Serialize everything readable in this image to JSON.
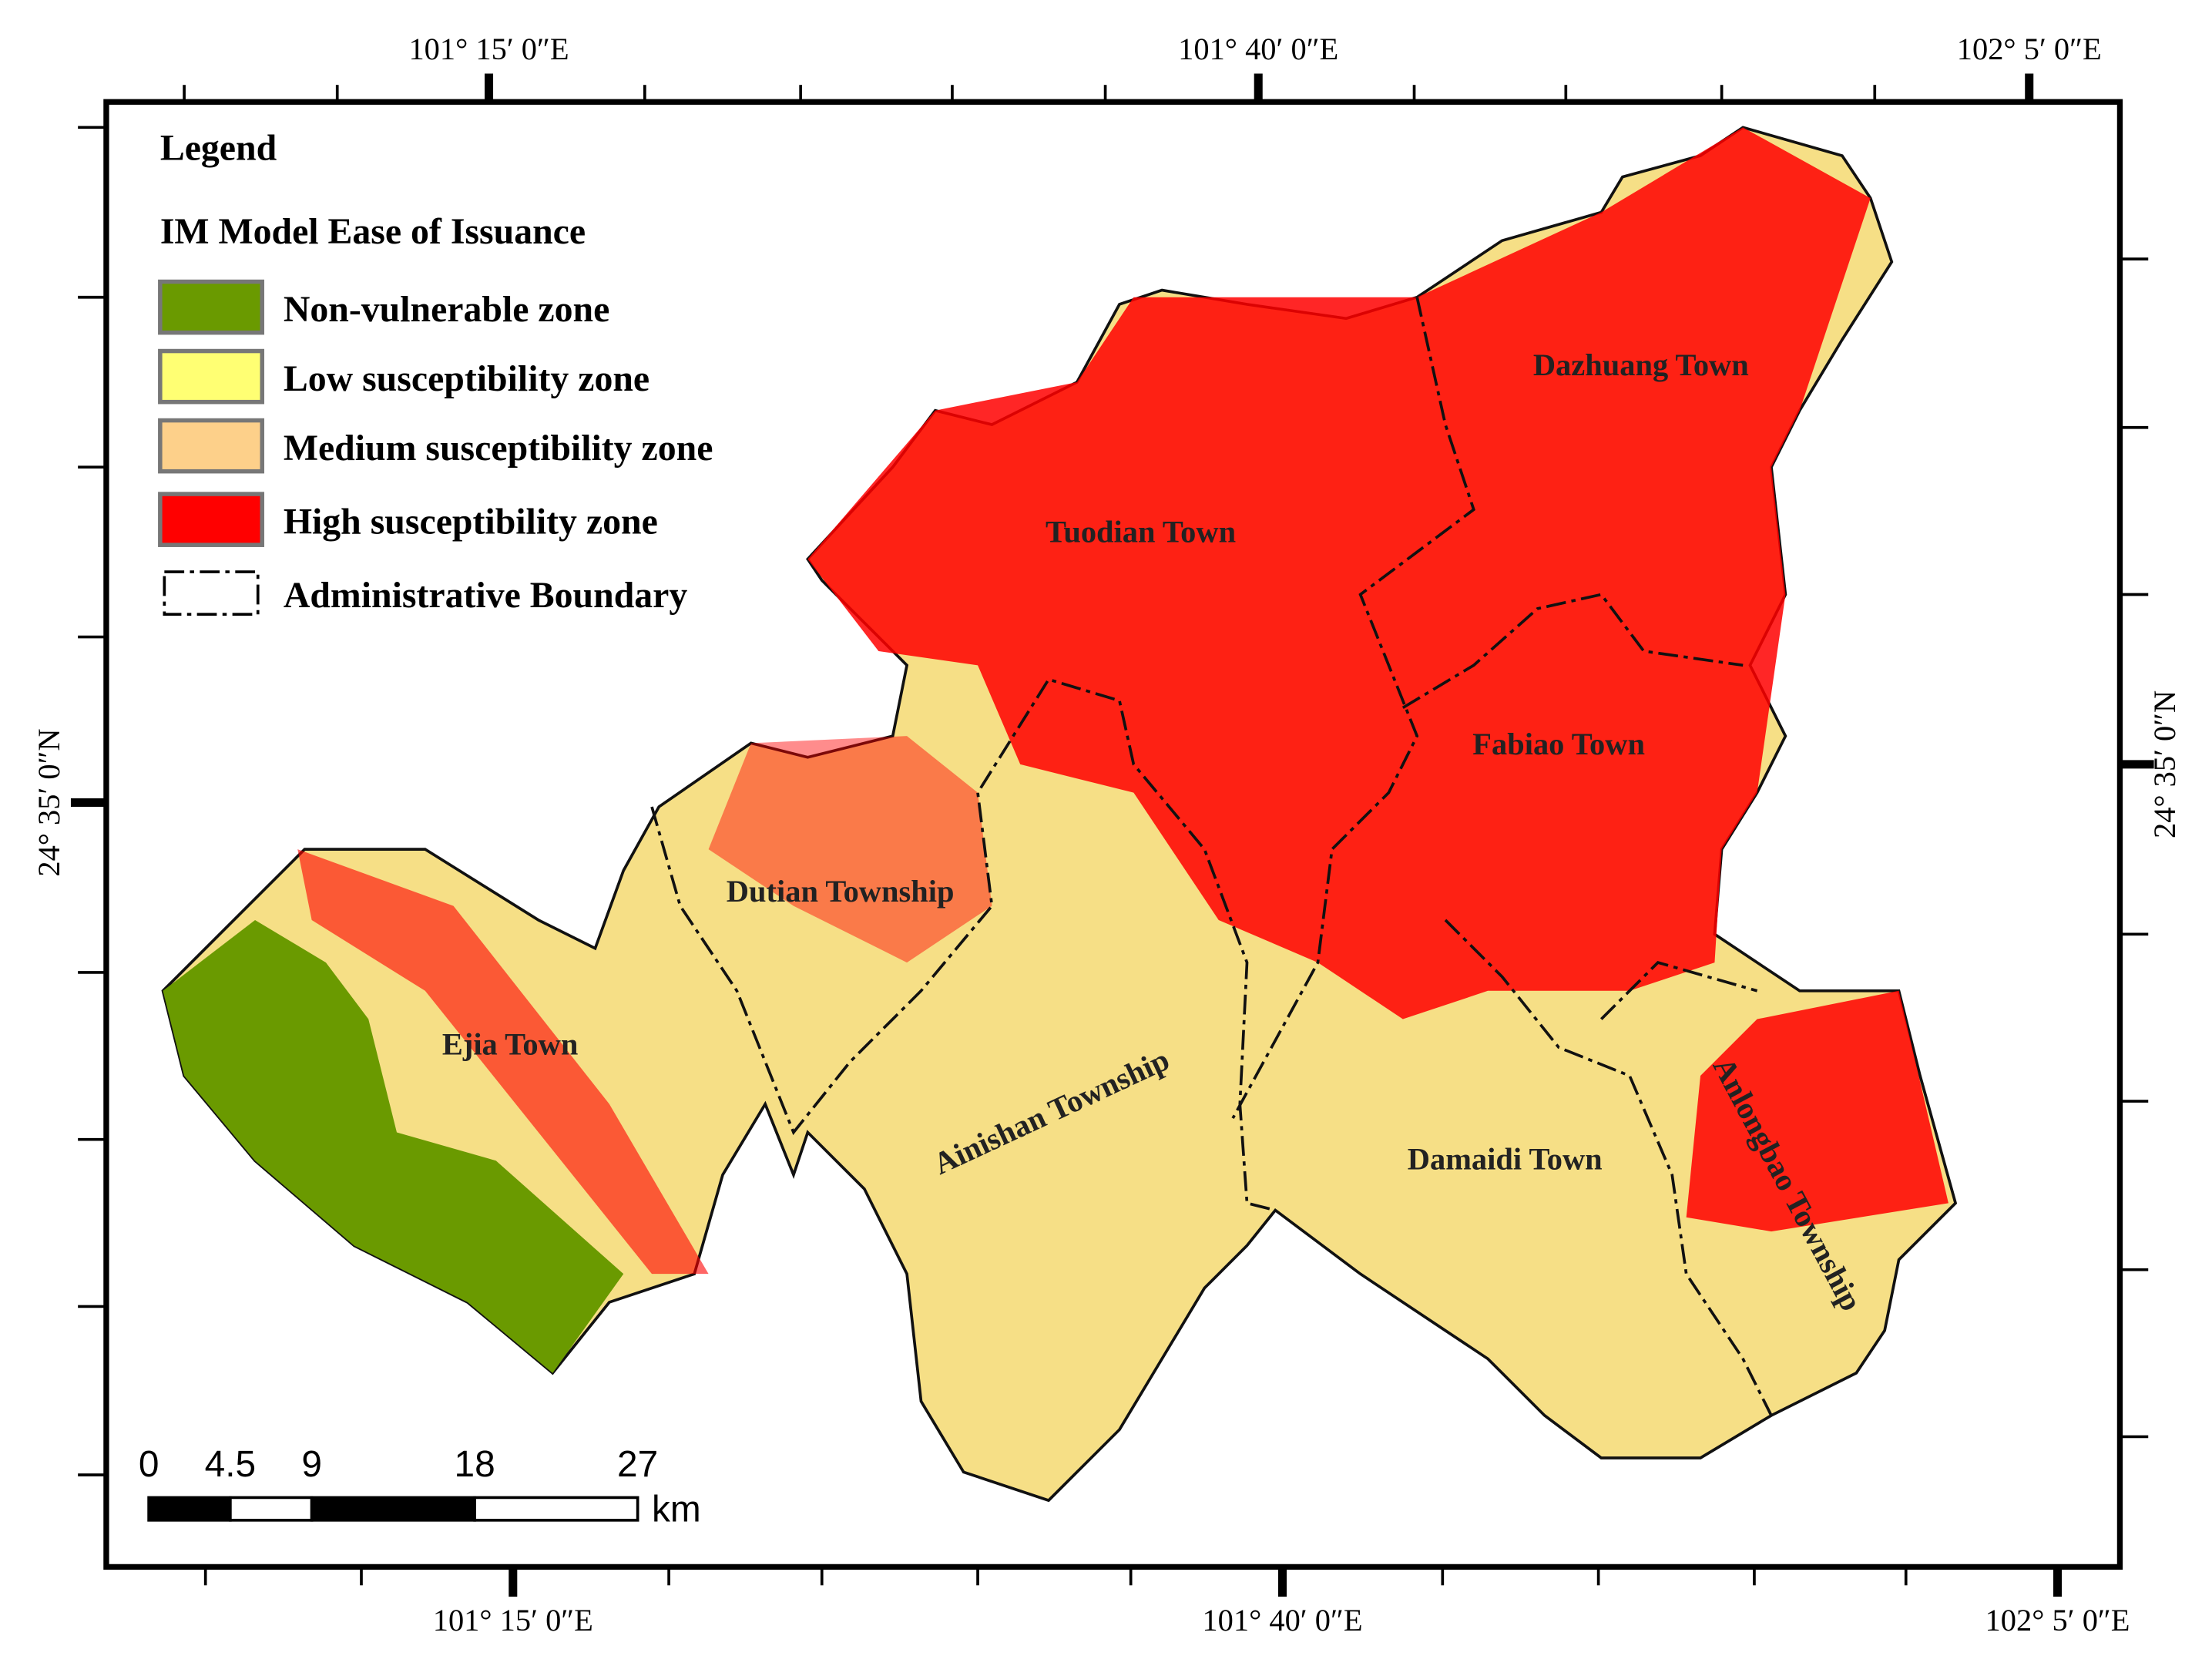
{
  "map": {
    "legend": {
      "title": "Legend",
      "subtitle": "IM  Model Ease of Issuance",
      "items": [
        {
          "label": "Non-vulnerable zone",
          "color": "#6a9a00"
        },
        {
          "label": "Low susceptibility zone",
          "color": "#ffff73"
        },
        {
          "label": "Medium susceptibility zone",
          "color": "#fdd08a"
        },
        {
          "label": "High susceptibility zone",
          "color": "#ff0000"
        },
        {
          "label": "Administrative Boundary"
        }
      ]
    },
    "coordinates": {
      "top": [
        "101° 15′ 0″E",
        "101° 40′ 0″E",
        "102° 5′ 0″E"
      ],
      "bottom": [
        "101° 15′ 0″E",
        "101° 40′ 0″E",
        "102° 5′ 0″E"
      ],
      "left": "24° 35′ 0″N",
      "right": "24° 35′ 0″N"
    },
    "towns": [
      "Tuodian Town",
      "Dazhuang Town",
      "Fabiao Town",
      "Dutian Township",
      "Ejia Town",
      "Ainishan Township",
      "Damaidi Town",
      "Anlongbao Township"
    ],
    "scale_bar": {
      "ticks": [
        0,
        4.5,
        9,
        18,
        27
      ],
      "unit": "km"
    }
  }
}
